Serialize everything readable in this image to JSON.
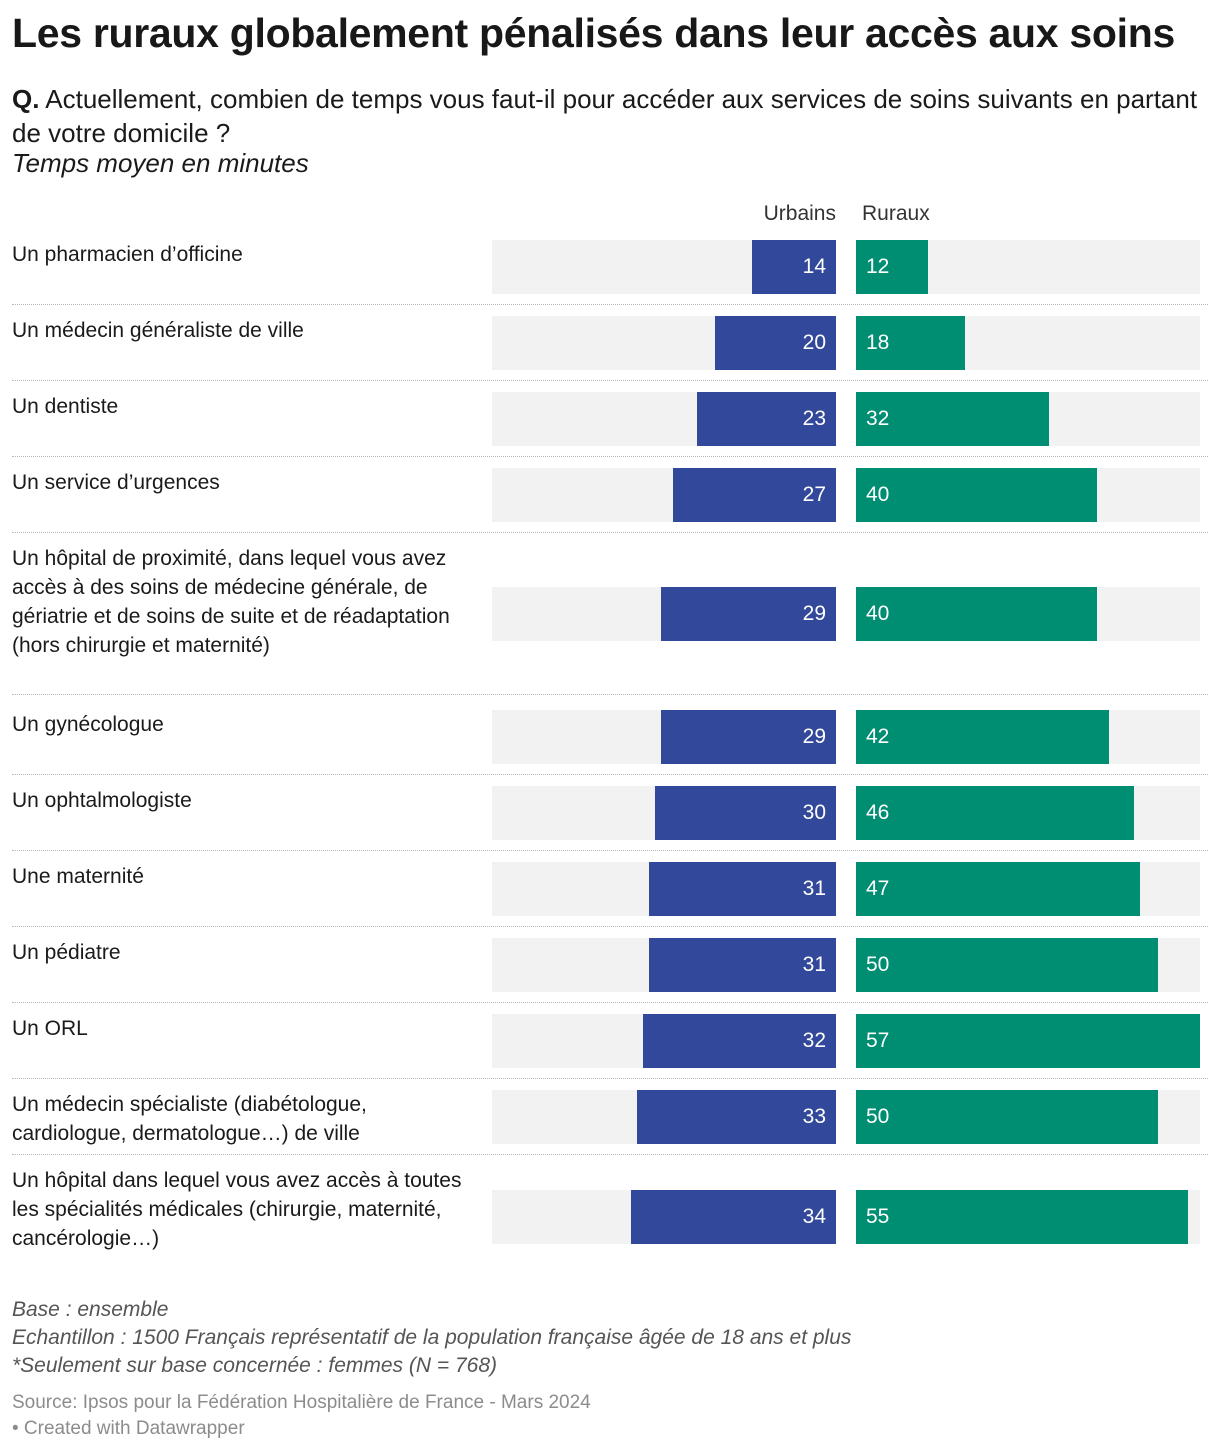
{
  "title": "Les ruraux globalement pénalisés dans leur accès aux soins",
  "question_prefix": "Q.",
  "question": "Actuellement, combien de temps vous faut-il pour accéder aux services de soins suivants en partant de votre domicile ?",
  "subtitle": "Temps moyen en minutes",
  "notes": [
    "Base : ensemble",
    "Echantillon : 1500 Français représentatif de la population française âgée de 18 ans et plus",
    "*Seulement sur base concernée : femmes (N = 768)"
  ],
  "source": "Source: Ipsos pour la Fédération Hospitalière de France - Mars 2024",
  "credit": "• Created with Datawrapper",
  "colors": {
    "urbains": "#32489a",
    "ruraux": "#008e73",
    "track": "#f2f2f2"
  },
  "chart_data": {
    "type": "bar",
    "orientation": "horizontal",
    "title": "Les ruraux globalement pénalisés dans leur accès aux soins",
    "categories": [
      "Un pharmacien d’officine",
      "Un médecin généraliste de ville",
      "Un dentiste",
      "Un service d’urgences",
      "Un hôpital de proximité, dans lequel vous avez accès à des soins de médecine générale, de gériatrie et de soins de suite et de réadaptation (hors chirurgie et maternité)",
      "Un gynécologue",
      "Un ophtalmologiste",
      "Une maternité",
      "Un pédiatre",
      "Un ORL",
      "Un médecin spécialiste (diabétologue, cardiologue, dermatologue…) de ville",
      "Un hôpital dans lequel vous avez accès à toutes les spécialités médicales (chirurgie, maternité, cancérologie…)"
    ],
    "series": [
      {
        "name": "Urbains",
        "values": [
          14,
          20,
          23,
          27,
          29,
          29,
          30,
          31,
          31,
          32,
          33,
          34
        ]
      },
      {
        "name": "Ruraux",
        "values": [
          12,
          18,
          32,
          40,
          40,
          42,
          46,
          47,
          50,
          57,
          50,
          55
        ]
      }
    ],
    "xlim": [
      0,
      57
    ]
  }
}
